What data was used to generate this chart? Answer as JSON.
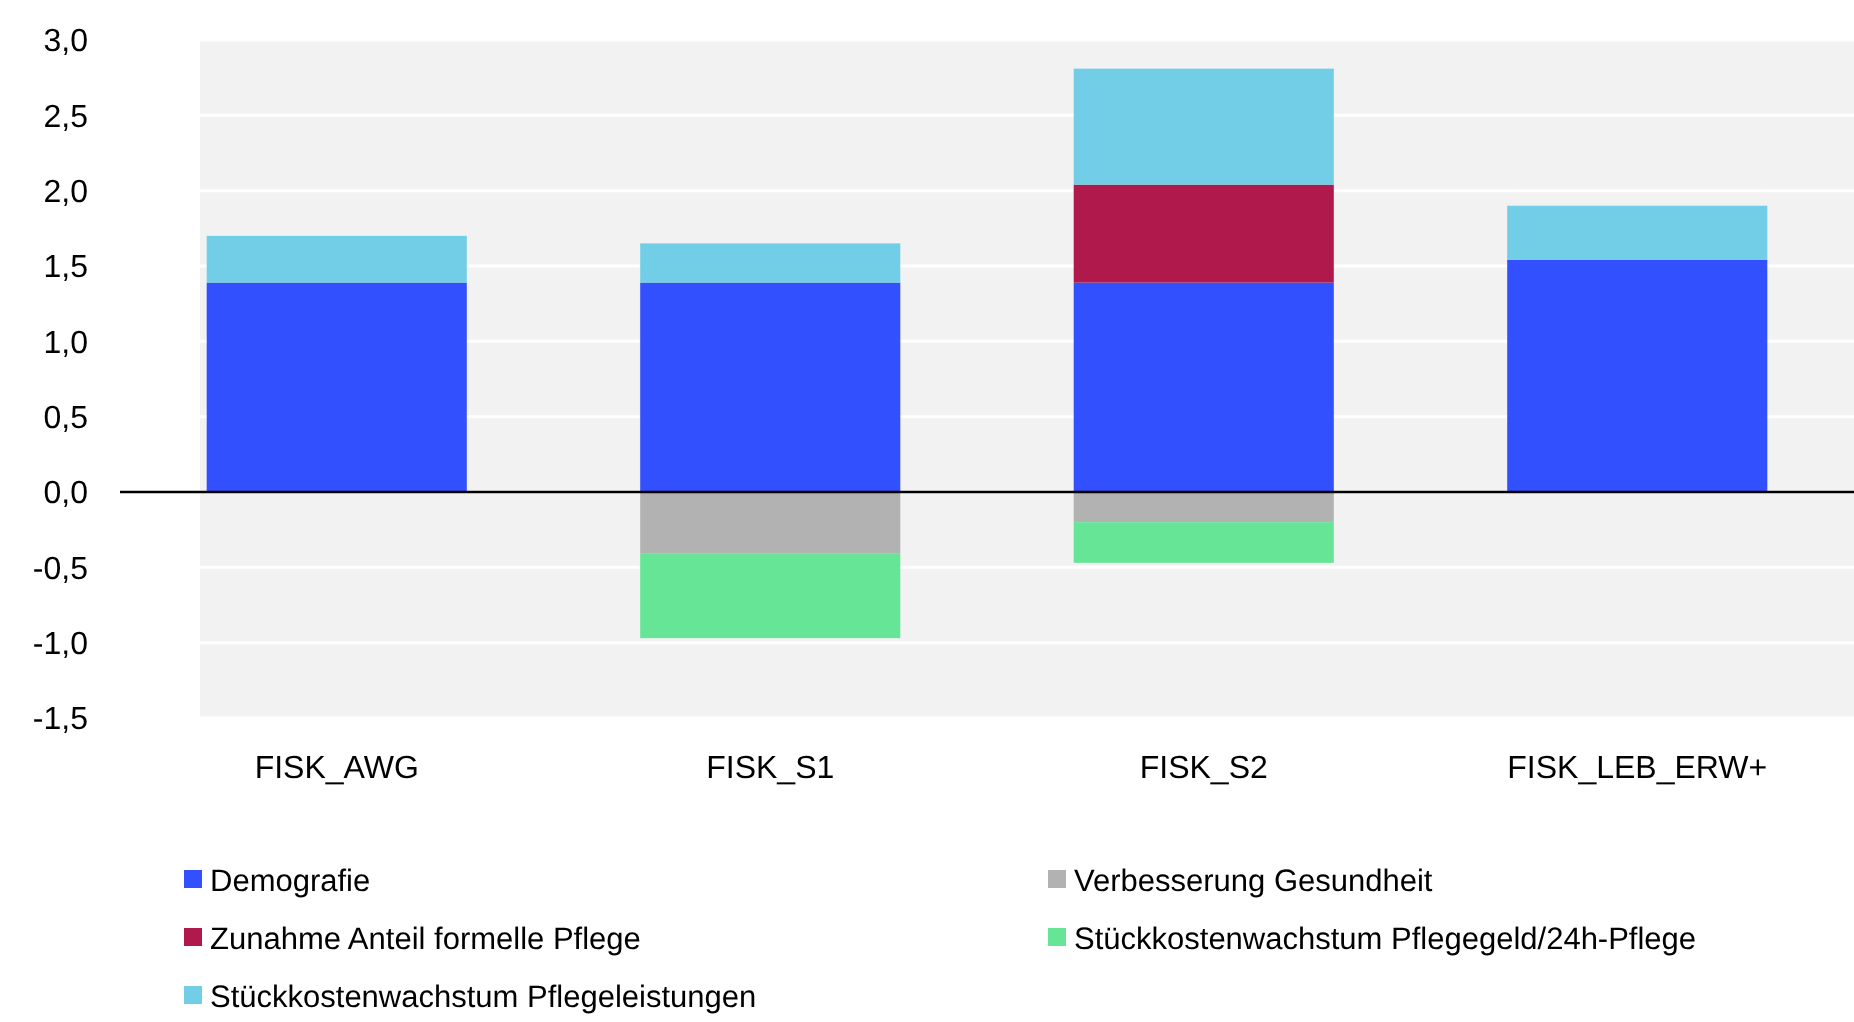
{
  "chart_data": {
    "type": "bar",
    "stacked": true,
    "categories": [
      "FISK_AWG",
      "FISK_S1",
      "FISK_S2",
      "FISK_LEB_ERW+"
    ],
    "series": [
      {
        "name": "Demografie",
        "color": "#3350ff",
        "values": [
          1.39,
          1.39,
          1.39,
          1.54
        ]
      },
      {
        "name": "Verbesserung Gesundheit",
        "color": "#b2b2b2",
        "values": [
          null,
          -0.41,
          -0.2,
          null
        ]
      },
      {
        "name": "Zunahme Anteil formelle Pflege",
        "color": "#b0194c",
        "values": [
          null,
          null,
          0.65,
          null
        ]
      },
      {
        "name": "Stückkostenwachstum Pflegegeld/24h-Pflege",
        "color": "#66e596",
        "values": [
          null,
          -0.56,
          -0.27,
          null
        ]
      },
      {
        "name": "Stückkostenwachstum Pflegeleistungen",
        "color": "#72cee6",
        "values": [
          0.31,
          0.26,
          0.77,
          0.36
        ]
      }
    ],
    "ylim": [
      -1.5,
      3
    ],
    "yticks": [
      {
        "value": -1.5,
        "label": "-1,5"
      },
      {
        "value": -1,
        "label": "-1,0"
      },
      {
        "value": -0.5,
        "label": "-0,5"
      },
      {
        "value": 0,
        "label": "0,0"
      },
      {
        "value": 0.5,
        "label": "0,5"
      },
      {
        "value": 1,
        "label": "1,0"
      },
      {
        "value": 1.5,
        "label": "1,5"
      },
      {
        "value": 2,
        "label": "2,0"
      },
      {
        "value": 2.5,
        "label": "2,5"
      },
      {
        "value": 3,
        "label": "3,0"
      }
    ],
    "grid": "y",
    "legend": "bottom"
  }
}
